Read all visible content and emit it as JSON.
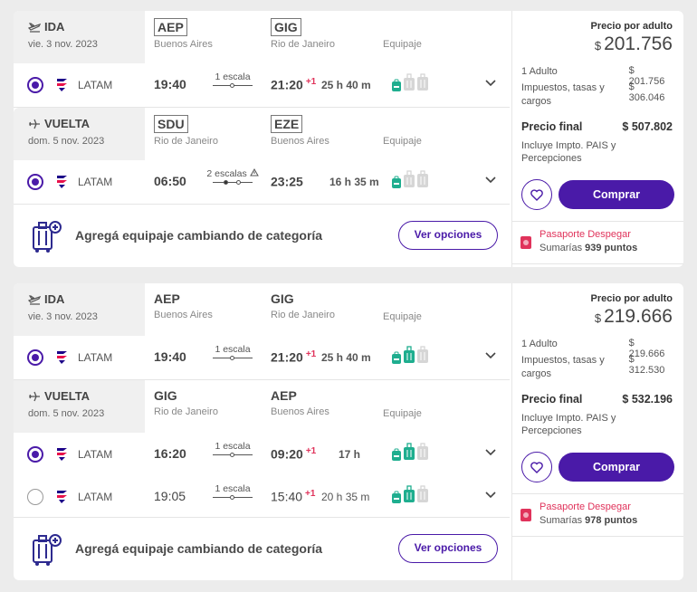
{
  "cards": [
    {
      "outbound": {
        "label": "IDA",
        "date": "vie. 3 nov. 2023",
        "from_code": "AEP",
        "from_city": "Buenos Aires",
        "to_code": "GIG",
        "to_city": "Rio de Janeiro",
        "equipaje_label": "Equipaje",
        "options": [
          {
            "airline": "LATAM",
            "dep": "19:40",
            "stops": "1 escala",
            "arr": "21:20",
            "plus": "+1",
            "duration": "25 h 40 m",
            "selected": true
          }
        ]
      },
      "return": {
        "label": "VUELTA",
        "date": "dom. 5 nov. 2023",
        "from_code": "SDU",
        "from_city": "Rio de Janeiro",
        "to_code": "EZE",
        "to_city": "Buenos Aires",
        "equipaje_label": "Equipaje",
        "options": [
          {
            "airline": "LATAM",
            "dep": "06:50",
            "stops": "2 escalas",
            "arr": "23:25",
            "plus": "",
            "duration": "16 h 35 m",
            "selected": true
          }
        ]
      },
      "baggage_msg": "Agregá equipaje cambiando de categoría",
      "options_button": "Ver opciones",
      "price": {
        "per_adult_label": "Precio por adulto",
        "currency": "$",
        "per_adult": "201.756",
        "adult_label": "1 Adulto",
        "adult_value": "$ 201.756",
        "taxes_label": "Impuestos, tasas y cargos",
        "taxes_value": "$ 306.046",
        "final_label": "Precio final",
        "final_value": "$ 507.802",
        "includes": "Incluye Impto. PAIS y Percepciones",
        "buy_label": "Comprar",
        "passport_title": "Pasaporte Despegar",
        "passport_prefix": "Sumarías",
        "passport_points": "939 puntos"
      }
    },
    {
      "outbound": {
        "label": "IDA",
        "date": "vie. 3 nov. 2023",
        "from_code": "AEP",
        "from_city": "Buenos Aires",
        "to_code": "GIG",
        "to_city": "Rio de Janeiro",
        "equipaje_label": "Equipaje",
        "options": [
          {
            "airline": "LATAM",
            "dep": "19:40",
            "stops": "1 escala",
            "arr": "21:20",
            "plus": "+1",
            "duration": "25 h 40 m",
            "selected": true
          }
        ]
      },
      "return": {
        "label": "VUELTA",
        "date": "dom. 5 nov. 2023",
        "from_code": "GIG",
        "from_city": "Rio de Janeiro",
        "to_code": "AEP",
        "to_city": "Buenos Aires",
        "equipaje_label": "Equipaje",
        "options": [
          {
            "airline": "LATAM",
            "dep": "16:20",
            "stops": "1 escala",
            "arr": "09:20",
            "plus": "+1",
            "duration": "17 h",
            "selected": true
          },
          {
            "airline": "LATAM",
            "dep": "19:05",
            "stops": "1 escala",
            "arr": "15:40",
            "plus": "+1",
            "duration": "20 h 35 m",
            "selected": false
          }
        ]
      },
      "baggage_msg": "Agregá equipaje cambiando de categoría",
      "options_button": "Ver opciones",
      "price": {
        "per_adult_label": "Precio por adulto",
        "currency": "$",
        "per_adult": "219.666",
        "adult_label": "1 Adulto",
        "adult_value": "$ 219.666",
        "taxes_label": "Impuestos, tasas y cargos",
        "taxes_value": "$ 312.530",
        "final_label": "Precio final",
        "final_value": "$ 532.196",
        "includes": "Incluye Impto. PAIS y Percepciones",
        "buy_label": "Comprar",
        "passport_title": "Pasaporte Despegar",
        "passport_prefix": "Sumarías",
        "passport_points": "978 puntos"
      }
    }
  ],
  "colors": {
    "accent": "#4a1aa8",
    "red": "#e0335b",
    "bag_green": "#1fae8f",
    "bag_grey": "#d6d6d6"
  }
}
